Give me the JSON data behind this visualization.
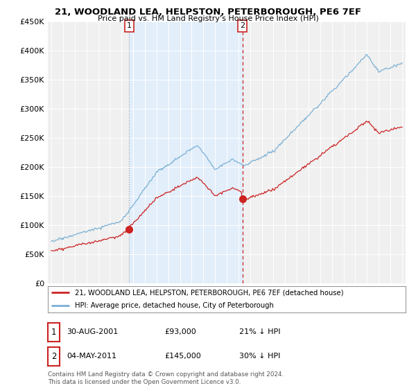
{
  "title": "21, WOODLAND LEA, HELPSTON, PETERBOROUGH, PE6 7EF",
  "subtitle": "Price paid vs. HM Land Registry's House Price Index (HPI)",
  "legend_line1": "21, WOODLAND LEA, HELPSTON, PETERBOROUGH, PE6 7EF (detached house)",
  "legend_line2": "HPI: Average price, detached house, City of Peterborough",
  "annotation1_label": "1",
  "annotation1_date": "30-AUG-2001",
  "annotation1_price": "£93,000",
  "annotation1_hpi": "21% ↓ HPI",
  "annotation2_label": "2",
  "annotation2_date": "04-MAY-2011",
  "annotation2_price": "£145,000",
  "annotation2_hpi": "30% ↓ HPI",
  "footnote": "Contains HM Land Registry data © Crown copyright and database right 2024.\nThis data is licensed under the Open Government Licence v3.0.",
  "hpi_color": "#7ab0d4",
  "paid_color": "#cc2222",
  "vline1_color": "#aaaaaa",
  "vline2_color": "#cc2222",
  "shade_color": "#ddeeff",
  "background_color": "#ffffff",
  "plot_bg_color": "#f0f0f0",
  "ylim_max": 450000,
  "purchase1_year": 2001.664,
  "purchase1_price": 93000,
  "purchase2_year": 2011.336,
  "purchase2_price": 145000
}
